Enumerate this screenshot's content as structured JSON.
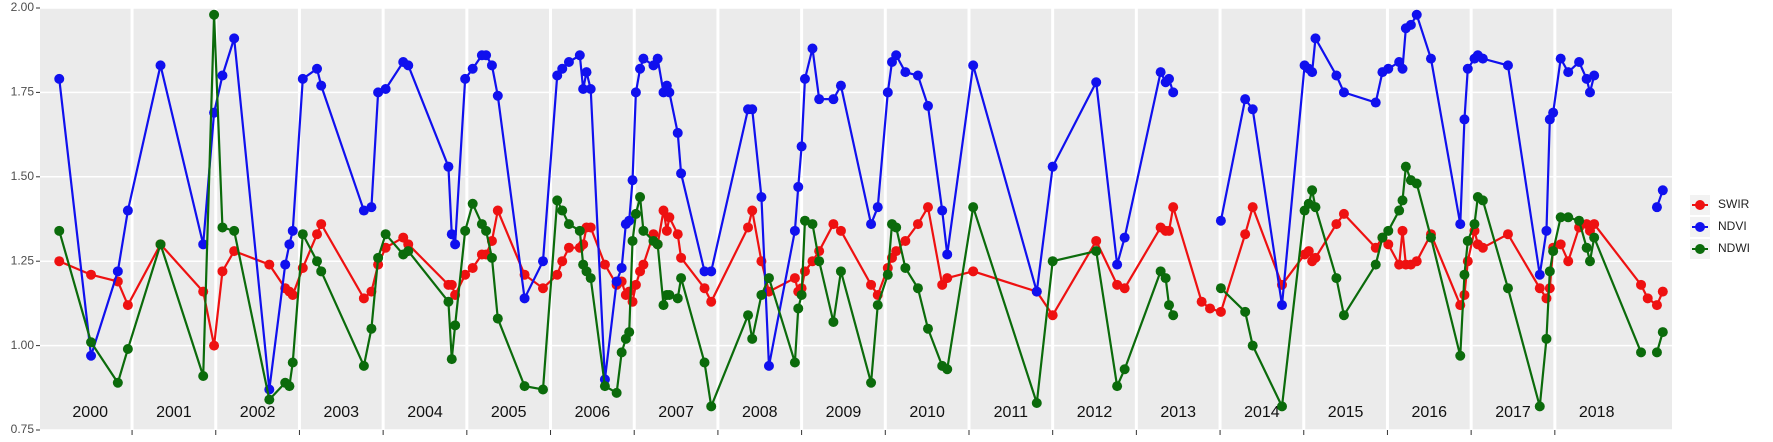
{
  "chart_data": {
    "type": "line",
    "x": [
      2000.13,
      2000.51,
      2000.83,
      2000.95,
      2001.34,
      2001.85,
      2001.98,
      2002.08,
      2002.22,
      2002.64,
      2002.83,
      2002.88,
      2002.92,
      2003.04,
      2003.21,
      2003.26,
      2003.77,
      2003.86,
      2003.94,
      2004.03,
      2004.24,
      2004.3,
      2004.78,
      2004.82,
      2004.86,
      2004.98,
      2005.07,
      2005.18,
      2005.23,
      2005.3,
      2005.37,
      2005.69,
      2005.91,
      2006.08,
      2006.14,
      2006.22,
      2006.35,
      2006.39,
      2006.43,
      2006.48,
      2006.65,
      2006.79,
      2006.85,
      2006.9,
      2006.94,
      2006.98,
      2007.02,
      2007.07,
      2007.11,
      2007.23,
      2007.28,
      2007.35,
      2007.39,
      2007.42,
      2007.52,
      2007.56,
      2007.84,
      2007.92,
      2008.36,
      2008.41,
      2008.52,
      2008.61,
      2008.92,
      2008.96,
      2009.0,
      2009.04,
      2009.13,
      2009.21,
      2009.38,
      2009.47,
      2009.83,
      2009.91,
      2010.03,
      2010.08,
      2010.13,
      2010.24,
      2010.39,
      2010.51,
      2010.68,
      2010.74,
      2011.05,
      2011.81,
      2012.0,
      2012.52,
      2012.77,
      2012.86,
      2013.29,
      2013.35,
      2013.39,
      2013.44,
      2013.78,
      2013.88,
      2014.01,
      2014.3,
      2014.39,
      2014.74,
      2015.01,
      2015.06,
      2015.1,
      2015.14,
      2015.39,
      2015.48,
      2015.86,
      2015.94,
      2016.01,
      2016.14,
      2016.18,
      2016.22,
      2016.28,
      2016.35,
      2016.52,
      2016.87,
      2016.92,
      2016.96,
      2017.04,
      2017.08,
      2017.14,
      2017.44,
      2017.82,
      2017.9,
      2017.94,
      2017.98,
      2018.07,
      2018.16,
      2018.29,
      2018.38,
      2018.42,
      2018.47,
      2019.03,
      2019.11,
      2019.22,
      2019.29
    ],
    "series": [
      {
        "name": "SWIR",
        "color": "#ee1111",
        "values": [
          1.25,
          1.21,
          1.19,
          1.12,
          1.3,
          1.16,
          1.0,
          1.22,
          1.28,
          1.24,
          1.17,
          1.16,
          1.15,
          1.23,
          1.33,
          1.36,
          1.14,
          1.16,
          1.24,
          1.29,
          1.32,
          1.3,
          1.18,
          1.18,
          1.15,
          1.21,
          1.23,
          1.27,
          1.27,
          1.31,
          1.4,
          1.21,
          1.17,
          1.21,
          1.25,
          1.29,
          1.29,
          1.3,
          1.35,
          1.35,
          1.24,
          1.18,
          1.19,
          1.15,
          1.16,
          1.13,
          1.18,
          1.22,
          1.24,
          1.33,
          1.3,
          1.4,
          1.34,
          1.38,
          1.33,
          1.26,
          1.17,
          1.13,
          1.35,
          1.4,
          1.25,
          1.16,
          1.2,
          1.16,
          1.17,
          1.22,
          1.25,
          1.28,
          1.36,
          1.34,
          1.18,
          1.15,
          1.23,
          1.26,
          1.28,
          1.31,
          1.36,
          1.41,
          1.18,
          1.2,
          1.22,
          1.16,
          1.09,
          1.31,
          1.18,
          1.17,
          1.35,
          1.34,
          1.34,
          1.41,
          1.13,
          1.11,
          1.1,
          1.33,
          1.41,
          1.18,
          1.27,
          1.28,
          1.25,
          1.26,
          1.36,
          1.39,
          1.29,
          1.32,
          1.3,
          1.24,
          1.34,
          1.24,
          1.24,
          1.25,
          1.33,
          1.12,
          1.15,
          1.25,
          1.34,
          1.3,
          1.29,
          1.33,
          1.17,
          1.14,
          1.17,
          1.29,
          1.3,
          1.25,
          1.35,
          1.36,
          1.34,
          1.36,
          1.18,
          1.14,
          1.12,
          1.16
        ]
      },
      {
        "name": "NDVI",
        "color": "#1010ee",
        "values": [
          1.79,
          0.97,
          1.22,
          1.4,
          1.83,
          1.3,
          1.69,
          1.8,
          1.91,
          0.87,
          1.24,
          1.3,
          1.34,
          1.79,
          1.82,
          1.77,
          1.4,
          1.41,
          1.75,
          1.76,
          1.84,
          1.83,
          1.53,
          1.33,
          1.3,
          1.79,
          1.82,
          1.86,
          1.86,
          1.83,
          1.74,
          1.14,
          1.25,
          1.8,
          1.82,
          1.84,
          1.86,
          1.76,
          1.81,
          1.76,
          0.9,
          1.19,
          1.23,
          1.36,
          1.37,
          1.49,
          1.75,
          1.82,
          1.85,
          1.83,
          1.85,
          1.75,
          1.77,
          1.75,
          1.63,
          1.51,
          1.22,
          1.22,
          1.7,
          1.7,
          1.44,
          0.94,
          1.34,
          1.47,
          1.59,
          1.79,
          1.88,
          1.73,
          1.73,
          1.77,
          1.36,
          1.41,
          1.75,
          1.84,
          1.86,
          1.81,
          1.8,
          1.71,
          1.4,
          1.27,
          1.83,
          1.16,
          1.53,
          1.78,
          1.24,
          1.32,
          1.81,
          1.78,
          1.79,
          1.75,
          null,
          null,
          1.37,
          1.73,
          1.7,
          1.12,
          1.83,
          1.82,
          1.81,
          1.91,
          1.8,
          1.75,
          1.72,
          1.81,
          1.82,
          1.84,
          1.82,
          1.94,
          1.95,
          1.98,
          1.85,
          1.36,
          1.67,
          1.82,
          1.85,
          1.86,
          1.85,
          1.83,
          1.21,
          1.34,
          1.67,
          1.69,
          1.85,
          1.81,
          1.84,
          1.79,
          1.75,
          1.8,
          null,
          null,
          1.41,
          1.46
        ]
      },
      {
        "name": "NDWI",
        "color": "#0b6b0b",
        "values": [
          1.34,
          1.01,
          0.89,
          0.99,
          1.3,
          0.91,
          1.98,
          1.35,
          1.34,
          0.84,
          0.89,
          0.88,
          0.95,
          1.33,
          1.25,
          1.22,
          0.94,
          1.05,
          1.26,
          1.33,
          1.27,
          1.28,
          1.13,
          0.96,
          1.06,
          1.34,
          1.42,
          1.36,
          1.34,
          1.26,
          1.08,
          0.88,
          0.87,
          1.43,
          1.4,
          1.36,
          1.34,
          1.24,
          1.22,
          1.2,
          0.88,
          0.86,
          0.98,
          1.02,
          1.04,
          1.31,
          1.39,
          1.44,
          1.34,
          1.31,
          1.3,
          1.12,
          1.15,
          1.15,
          1.14,
          1.2,
          0.95,
          0.82,
          1.09,
          1.02,
          1.15,
          1.2,
          0.95,
          1.11,
          1.15,
          1.37,
          1.36,
          1.25,
          1.07,
          1.22,
          0.89,
          1.12,
          1.21,
          1.36,
          1.35,
          1.23,
          1.17,
          1.05,
          0.94,
          0.93,
          1.41,
          0.83,
          1.25,
          1.28,
          0.88,
          0.93,
          1.22,
          1.2,
          1.12,
          1.09,
          null,
          null,
          1.17,
          1.1,
          1.0,
          0.82,
          1.4,
          1.42,
          1.46,
          1.41,
          1.2,
          1.09,
          1.24,
          1.32,
          1.34,
          1.4,
          1.43,
          1.53,
          1.49,
          1.48,
          1.32,
          0.97,
          1.21,
          1.31,
          1.36,
          1.44,
          1.43,
          1.17,
          0.82,
          1.02,
          1.22,
          1.28,
          1.38,
          1.38,
          1.37,
          1.29,
          1.25,
          1.32,
          0.98,
          null,
          0.98,
          1.04
        ]
      }
    ],
    "xlim": [
      1999.9,
      2019.4
    ],
    "xticks": [
      2001,
      2002,
      2003,
      2004,
      2005,
      2006,
      2007,
      2008,
      2009,
      2010,
      2011,
      2012,
      2013,
      2014,
      2015,
      2016,
      2017,
      2018
    ],
    "ylim": [
      0.75,
      2.0
    ],
    "yticks": [
      0.75,
      {
        "value": 1,
        "label": "1.00"
      },
      {
        "value": 1.25,
        "label": "1.25"
      },
      {
        "value": 1.5,
        "label": "1.50"
      },
      {
        "value": 1.75,
        "label": "1.75"
      },
      {
        "value": 2,
        "label": "2.00"
      }
    ],
    "annotations": [
      {
        "text": "2000",
        "x": 2000.5
      },
      {
        "text": "2001",
        "x": 2001.5
      },
      {
        "text": "2002",
        "x": 2002.5
      },
      {
        "text": "2003",
        "x": 2003.5
      },
      {
        "text": "2004",
        "x": 2004.5
      },
      {
        "text": "2005",
        "x": 2005.5
      },
      {
        "text": "2006",
        "x": 2006.5
      },
      {
        "text": "2007",
        "x": 2007.5
      },
      {
        "text": "2008",
        "x": 2008.5
      },
      {
        "text": "2009",
        "x": 2009.5
      },
      {
        "text": "2010",
        "x": 2010.5
      },
      {
        "text": "2011",
        "x": 2011.5
      },
      {
        "text": "2012",
        "x": 2012.5
      },
      {
        "text": "2013",
        "x": 2013.5
      },
      {
        "text": "2014",
        "x": 2014.5
      },
      {
        "text": "2015",
        "x": 2015.5
      },
      {
        "text": "2016",
        "x": 2016.5
      },
      {
        "text": "2017",
        "x": 2017.5
      },
      {
        "text": "2018",
        "x": 2018.5
      }
    ],
    "grid": true,
    "legend": "right"
  }
}
